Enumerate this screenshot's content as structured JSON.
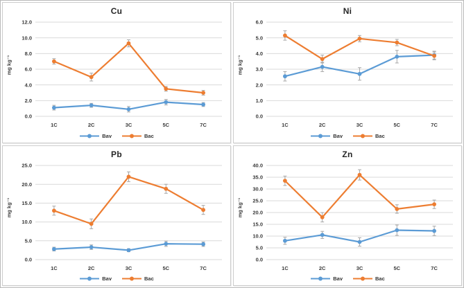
{
  "palette": {
    "bav": "#5B9BD5",
    "bac": "#ED7D31",
    "error_bar": "#A6A6A6",
    "gridline": "#D9D9D9",
    "tick_text": "#3B3B3B",
    "title_text": "#262626",
    "panel_border": "#CCCCCC",
    "background": "#FFFFFF"
  },
  "chart_data": [
    {
      "type": "line",
      "title": "Cu",
      "ylabel": "mg kg⁻¹",
      "xlabel": "",
      "categories": [
        "1C",
        "2C",
        "3C",
        "5C",
        "7C"
      ],
      "ylim": [
        0,
        12
      ],
      "ytick_step": 2,
      "ytick_format_decimals": 1,
      "grid": true,
      "legend_position": "bottom",
      "error_bars": true,
      "series": [
        {
          "name": "Bav",
          "color": "#5B9BD5",
          "values": [
            1.1,
            1.4,
            0.9,
            1.8,
            1.5
          ],
          "errors": [
            0.3,
            0.25,
            0.35,
            0.35,
            0.25
          ]
        },
        {
          "name": "Bac",
          "color": "#ED7D31",
          "values": [
            7.0,
            5.0,
            9.3,
            3.5,
            3.0
          ],
          "errors": [
            0.35,
            0.5,
            0.45,
            0.3,
            0.3
          ]
        }
      ]
    },
    {
      "type": "line",
      "title": "Ni",
      "ylabel": "mg kg⁻¹",
      "xlabel": "",
      "categories": [
        "1C",
        "2C",
        "3C",
        "5C",
        "7C"
      ],
      "ylim": [
        0,
        6
      ],
      "ytick_step": 1,
      "ytick_format_decimals": 1,
      "grid": true,
      "legend_position": "bottom",
      "error_bars": true,
      "series": [
        {
          "name": "Bav",
          "color": "#5B9BD5",
          "values": [
            2.55,
            3.15,
            2.7,
            3.8,
            3.9
          ],
          "errors": [
            0.3,
            0.3,
            0.4,
            0.4,
            0.25
          ]
        },
        {
          "name": "Bac",
          "color": "#ED7D31",
          "values": [
            5.15,
            3.65,
            4.95,
            4.7,
            3.85
          ],
          "errors": [
            0.3,
            0.25,
            0.2,
            0.2,
            0.25
          ]
        }
      ]
    },
    {
      "type": "line",
      "title": "Pb",
      "ylabel": "mg kg⁻¹",
      "xlabel": "",
      "categories": [
        "1C",
        "2C",
        "3C",
        "5C",
        "7C"
      ],
      "ylim": [
        0,
        25
      ],
      "ytick_step": 5,
      "ytick_format_decimals": 1,
      "grid": true,
      "legend_position": "bottom",
      "error_bars": true,
      "series": [
        {
          "name": "Bav",
          "color": "#5B9BD5",
          "values": [
            2.8,
            3.3,
            2.5,
            4.2,
            4.1
          ],
          "errors": [
            0.5,
            0.6,
            0.4,
            0.7,
            0.6
          ]
        },
        {
          "name": "Bac",
          "color": "#ED7D31",
          "values": [
            13.0,
            9.5,
            22.0,
            18.8,
            13.2
          ],
          "errors": [
            1.2,
            1.3,
            1.3,
            1.2,
            1.2
          ]
        }
      ]
    },
    {
      "type": "line",
      "title": "Zn",
      "ylabel": "mg kg⁻¹",
      "xlabel": "",
      "categories": [
        "1C",
        "2C",
        "3C",
        "5C",
        "7C"
      ],
      "ylim": [
        0,
        40
      ],
      "ytick_step": 5,
      "ytick_format_decimals": 1,
      "grid": true,
      "legend_position": "bottom",
      "error_bars": true,
      "series": [
        {
          "name": "Bav",
          "color": "#5B9BD5",
          "values": [
            8.0,
            10.5,
            7.5,
            12.5,
            12.2
          ],
          "errors": [
            1.5,
            1.5,
            1.8,
            2.2,
            2.0
          ]
        },
        {
          "name": "Bac",
          "color": "#ED7D31",
          "values": [
            33.5,
            18.0,
            36.0,
            21.5,
            23.5
          ],
          "errors": [
            2.0,
            2.0,
            2.2,
            1.8,
            1.8
          ]
        }
      ]
    }
  ]
}
